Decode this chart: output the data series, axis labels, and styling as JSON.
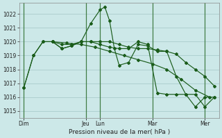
{
  "background_color": "#cce8e8",
  "grid_color": "#aacccc",
  "line_color": "#1a5c1a",
  "xlabel": "Pression niveau de la mer( hPa )",
  "ylim": [
    1014.5,
    1022.8
  ],
  "yticks": [
    1015,
    1016,
    1017,
    1018,
    1019,
    1020,
    1021,
    1022
  ],
  "xlim": [
    0,
    42
  ],
  "vlines": [
    1,
    14,
    17,
    28,
    39
  ],
  "xtick_pos": [
    1,
    14,
    17,
    28,
    39
  ],
  "xtick_labels": [
    "Dim",
    "Jeu",
    "Lun",
    "Mar",
    "Mer"
  ],
  "series": [
    {
      "x": [
        1,
        3,
        5,
        7,
        9,
        11,
        13,
        15,
        17,
        18,
        19,
        20,
        21,
        23,
        25,
        27,
        29,
        31,
        33,
        35,
        37,
        39,
        41
      ],
      "y": [
        1016.7,
        1019.0,
        1020.0,
        1020.0,
        1019.5,
        1019.7,
        1020.0,
        1021.3,
        1022.3,
        1022.5,
        1021.5,
        1019.5,
        1018.3,
        1018.5,
        1019.8,
        1019.7,
        1019.3,
        1019.3,
        1017.5,
        1016.2,
        1016.2,
        1015.3,
        1016.0
      ]
    },
    {
      "x": [
        1,
        3,
        5,
        7,
        9,
        11,
        13,
        15,
        17,
        19,
        21,
        23,
        25,
        27,
        29,
        31,
        33,
        35,
        37,
        39,
        41
      ],
      "y": [
        1016.7,
        1019.0,
        1020.0,
        1020.0,
        1019.5,
        1019.7,
        1020.0,
        1020.0,
        1020.0,
        1020.0,
        1019.8,
        1019.6,
        1019.5,
        1019.5,
        1019.4,
        1019.3,
        1019.1,
        1018.5,
        1018.0,
        1017.5,
        1016.8
      ]
    },
    {
      "x": [
        7,
        9,
        11,
        13,
        15,
        17,
        19,
        21,
        23,
        25,
        27,
        29,
        31,
        33,
        35,
        37,
        39,
        41
      ],
      "y": [
        1020.0,
        1019.8,
        1019.8,
        1020.0,
        1020.0,
        1019.8,
        1019.6,
        1019.5,
        1019.5,
        1020.0,
        1019.8,
        1016.3,
        1016.2,
        1016.2,
        1016.2,
        1015.3,
        1016.0,
        1016.0
      ]
    },
    {
      "x": [
        7,
        10,
        13,
        16,
        19,
        22,
        25,
        28,
        31,
        34,
        37,
        40
      ],
      "y": [
        1020.0,
        1019.9,
        1019.8,
        1019.6,
        1019.3,
        1019.0,
        1018.7,
        1018.4,
        1018.0,
        1017.3,
        1016.5,
        1016.0
      ]
    }
  ]
}
